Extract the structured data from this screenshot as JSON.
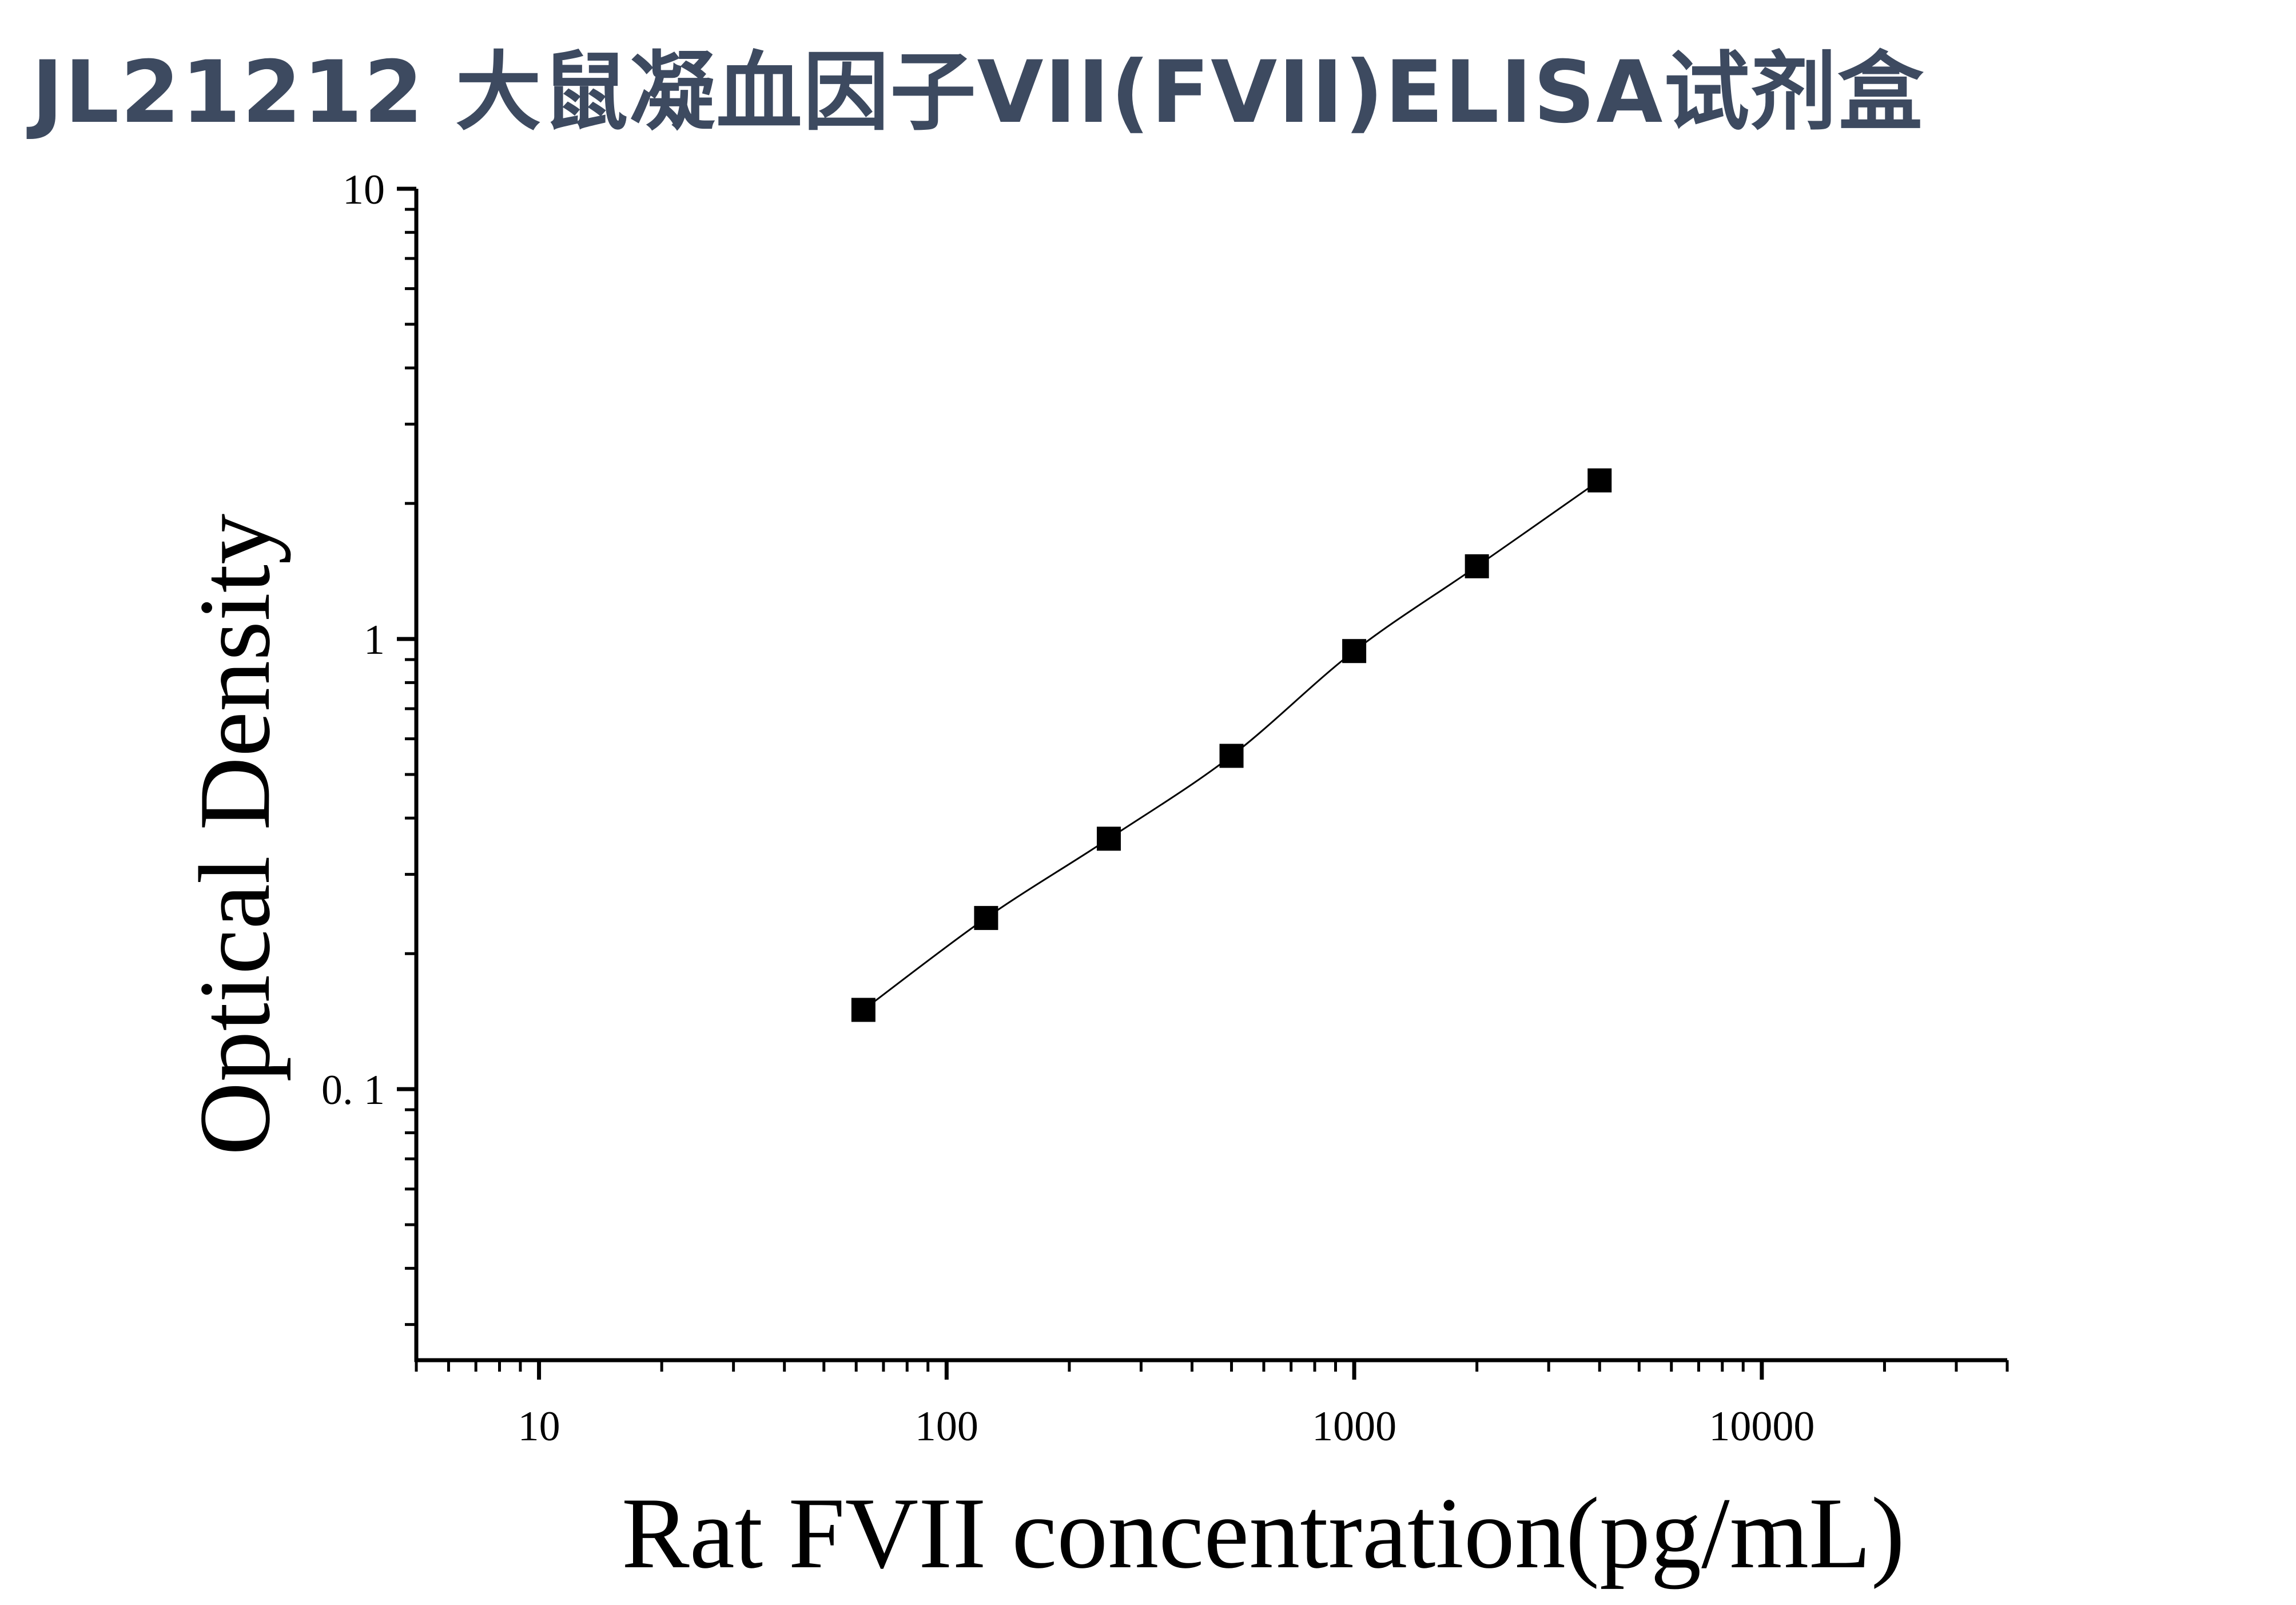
{
  "title": "JL21212 大鼠凝血因子VII(FVII)ELISA试剂盒",
  "chart_data": {
    "type": "scatter",
    "xlabel": "Rat FVII concentration(pg/mL)",
    "ylabel": "Optical Density",
    "xscale": "log",
    "yscale": "log",
    "xlim": [
      5,
      40000
    ],
    "ylim": [
      0.025,
      10
    ],
    "x_ticks": [
      {
        "value": 10,
        "label": "10"
      },
      {
        "value": 100,
        "label": "100"
      },
      {
        "value": 1000,
        "label": "1000"
      },
      {
        "value": 10000,
        "label": "10000"
      }
    ],
    "y_ticks": [
      {
        "value": 0.1,
        "label": "0. 1"
      },
      {
        "value": 1,
        "label": "1"
      },
      {
        "value": 10,
        "label": "10"
      }
    ],
    "grid": false,
    "series": [
      {
        "marker": "square",
        "color": "#000000",
        "fit_line": true,
        "x": [
          62.5,
          125,
          250,
          500,
          1000,
          2000,
          4000
        ],
        "y": [
          0.15,
          0.24,
          0.36,
          0.55,
          0.94,
          1.45,
          2.25
        ]
      }
    ]
  }
}
